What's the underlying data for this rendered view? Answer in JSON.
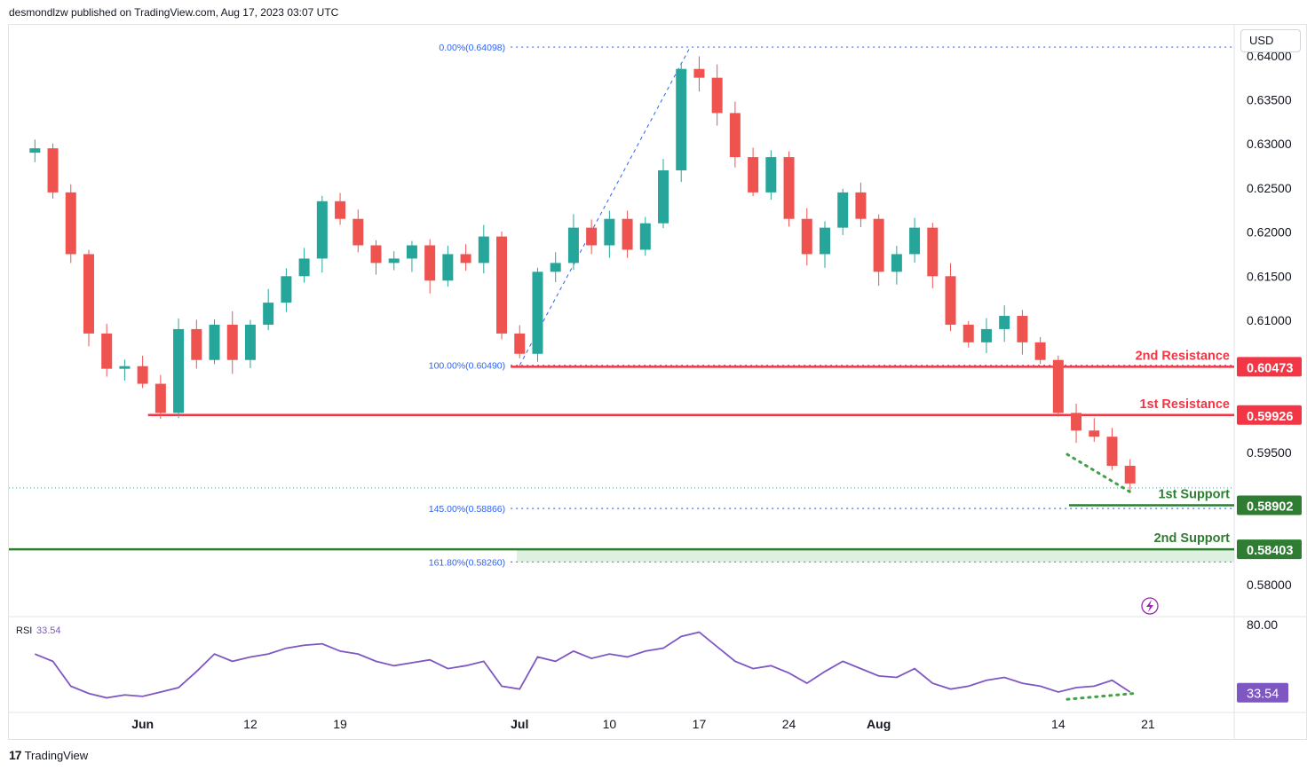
{
  "header": {
    "publisher_line": "desmondlzw published on TradingView.com, Aug 17, 2023 03:07 UTC"
  },
  "currency_label": "USD",
  "footer": {
    "brand": "TradingView",
    "logo_glyph": "17"
  },
  "colors": {
    "up": "#26a69a",
    "down": "#ef5350",
    "resistance": "#f23645",
    "support": "#2e7d32",
    "fib": "#2962ff",
    "rsi": "#7e57c2",
    "grid_text": "#131722"
  },
  "chart_data": {
    "type": "candlestick",
    "pair_currency": "USD",
    "ylim": [
      0.5765,
      0.6435
    ],
    "price_ticks": [
      "0.64000",
      "0.63500",
      "0.63000",
      "0.62500",
      "0.62000",
      "0.61500",
      "0.61000",
      "0.59500",
      "0.58000"
    ],
    "x_tick_labels": [
      {
        "label": "Jun",
        "bold": true,
        "index": 6
      },
      {
        "label": "12",
        "bold": false,
        "index": 12
      },
      {
        "label": "19",
        "bold": false,
        "index": 17
      },
      {
        "label": "Jul",
        "bold": true,
        "index": 27
      },
      {
        "label": "10",
        "bold": false,
        "index": 32
      },
      {
        "label": "17",
        "bold": false,
        "index": 37
      },
      {
        "label": "24",
        "bold": false,
        "index": 42
      },
      {
        "label": "Aug",
        "bold": true,
        "index": 47
      },
      {
        "label": "14",
        "bold": false,
        "index": 57
      },
      {
        "label": "21",
        "bold": false,
        "index": 62
      }
    ],
    "index_range": [
      -1.45,
      66.8
    ],
    "closes": [
      0.6295,
      0.6245,
      0.6175,
      0.6085,
      0.6045,
      0.6048,
      0.6028,
      0.5995,
      0.609,
      0.6055,
      0.6095,
      0.6055,
      0.6095,
      0.612,
      0.615,
      0.617,
      0.6235,
      0.6215,
      0.6185,
      0.6165,
      0.617,
      0.6185,
      0.6145,
      0.6175,
      0.6165,
      0.6195,
      0.6085,
      0.6062,
      0.6155,
      0.6165,
      0.6205,
      0.6185,
      0.6215,
      0.618,
      0.621,
      0.627,
      0.6385,
      0.6375,
      0.6335,
      0.6285,
      0.6245,
      0.6285,
      0.6215,
      0.6175,
      0.6205,
      0.6245,
      0.6215,
      0.6155,
      0.6175,
      0.6205,
      0.615,
      0.6095,
      0.6075,
      0.609,
      0.6105,
      0.6075,
      0.6055,
      0.5995,
      0.5975,
      0.5968,
      0.5935,
      0.5915
    ],
    "last_close": 0.5915,
    "fibonacci": [
      {
        "label": "0.00%(0.64098)",
        "price": 0.64098
      },
      {
        "label": "100.00%(0.60490)",
        "price": 0.6049
      },
      {
        "label": "145.00%(0.58866)",
        "price": 0.58866
      },
      {
        "label": "161.80%(0.58260)",
        "price": 0.5826
      }
    ],
    "levels": [
      {
        "name": "2nd Resistance",
        "price": 0.60473,
        "price_label": "0.60473",
        "kind": "resistance"
      },
      {
        "name": "1st Resistance",
        "price": 0.59926,
        "price_label": "0.59926",
        "kind": "resistance"
      },
      {
        "name": "1st Support",
        "price": 0.58902,
        "price_label": "0.58902",
        "kind": "support"
      },
      {
        "name": "2nd Support",
        "price": 0.58403,
        "price_label": "0.58403",
        "kind": "support"
      }
    ],
    "rsi": {
      "label": "RSI",
      "value_label": "33.54",
      "ylim": [
        20,
        85
      ],
      "ticks": [
        "80.00"
      ],
      "values": [
        60,
        55,
        38,
        33,
        30,
        32,
        31,
        34,
        37,
        48,
        60,
        55,
        58,
        60,
        64,
        66,
        67,
        62,
        60,
        55,
        52,
        54,
        56,
        50,
        52,
        55,
        38,
        36,
        58,
        55,
        62,
        57,
        60,
        58,
        62,
        64,
        72,
        75,
        65,
        55,
        50,
        52,
        47,
        40,
        48,
        55,
        50,
        45,
        44,
        50,
        40,
        36,
        38,
        42,
        44,
        40,
        38,
        34,
        37,
        38,
        42,
        34
      ]
    }
  }
}
